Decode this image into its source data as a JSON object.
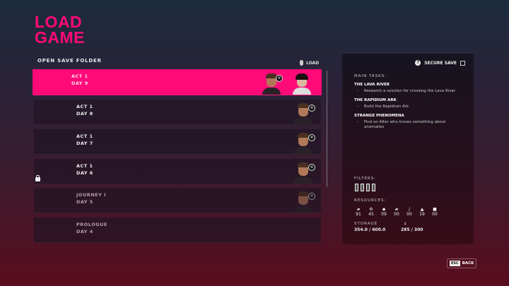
{
  "title": "LOAD GAME",
  "title_line1": "LOAD",
  "title_line2": "GAME",
  "open_folder": "OPEN SAVE FOLDER",
  "load_label": "LOAD",
  "saves": [
    {
      "act": "ACT 1",
      "day": "DAY 9",
      "selected": true
    },
    {
      "act": "ACT 1",
      "day": "DAY 8"
    },
    {
      "act": "ACT 1",
      "day": "DAY 7"
    },
    {
      "act": "ACT 1",
      "day": "DAY 6",
      "locked": true
    },
    {
      "act": "JOURNEY I",
      "day": "DAY 5"
    },
    {
      "act": "PROLOGUE",
      "day": "DAY 4"
    }
  ],
  "panel": {
    "secure_save": "SECURE SAVE",
    "main_tasks": "MAIN TASKS:",
    "tasks": [
      {
        "name": "THE LAVA RIVER",
        "sub": "Research a solution for crossing the Lava River"
      },
      {
        "name": "THE RAPIDIUM ARK",
        "sub": "Build the Rapidium Ark"
      },
      {
        "name": "STRANGE PHENOMENA",
        "sub": "Find an Alter who knows something about anomalies"
      }
    ],
    "filters": "FILTERS:",
    "resources_label": "RESOURCES:",
    "resources": [
      "91",
      "45",
      "09",
      "00",
      "00",
      "19",
      "00"
    ],
    "storage_label": "STORAGE",
    "storage": "354.0 / 600.0",
    "water": "285 / 300"
  },
  "back": {
    "key": "ESC",
    "label": "BACK"
  },
  "colors": {
    "accent": "#ff0a78"
  }
}
